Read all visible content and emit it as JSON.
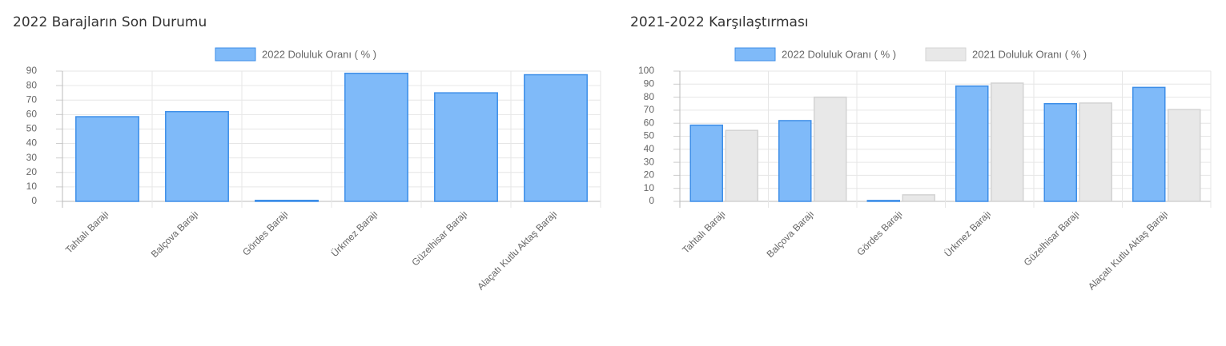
{
  "chart_data": [
    {
      "type": "bar",
      "title": "2022 Barajların Son Durumu",
      "categories": [
        "Tahtalı Barajı",
        "Balçova Barajı",
        "Gördes Barajı",
        "Ürkmez Barajı",
        "Güzelhisar Barajı",
        "Alaçatı Kutlu Aktaş Barajı"
      ],
      "series": [
        {
          "name": "2022 Doluluk Oranı ( % )",
          "color": "#7fbaf9",
          "values": [
            58.5,
            62,
            0.7,
            88.5,
            75,
            87.5
          ]
        }
      ],
      "ylim": [
        0,
        90
      ],
      "yticks": [
        0,
        10,
        20,
        30,
        40,
        50,
        60,
        70,
        80,
        90
      ],
      "grid": true
    },
    {
      "type": "bar",
      "title": "2021-2022 Karşılaştırması",
      "categories": [
        "Tahtalı Barajı",
        "Balçova Barajı",
        "Gördes Barajı",
        "Ürkmez Barajı",
        "Güzelhisar Barajı",
        "Alaçatı Kutlu Aktaş Barajı"
      ],
      "series": [
        {
          "name": "2022 Doluluk Oranı ( % )",
          "color": "#7fbaf9",
          "values": [
            58.5,
            62,
            0.7,
            88.5,
            75,
            87.5
          ]
        },
        {
          "name": "2021 Doluluk Oranı ( % )",
          "color": "#e8e8e8",
          "values": [
            54.5,
            80,
            5,
            90.8,
            75.5,
            70.5
          ]
        }
      ],
      "ylim": [
        0,
        100
      ],
      "yticks": [
        0,
        10,
        20,
        30,
        40,
        50,
        60,
        70,
        80,
        90,
        100
      ],
      "grid": true
    }
  ]
}
